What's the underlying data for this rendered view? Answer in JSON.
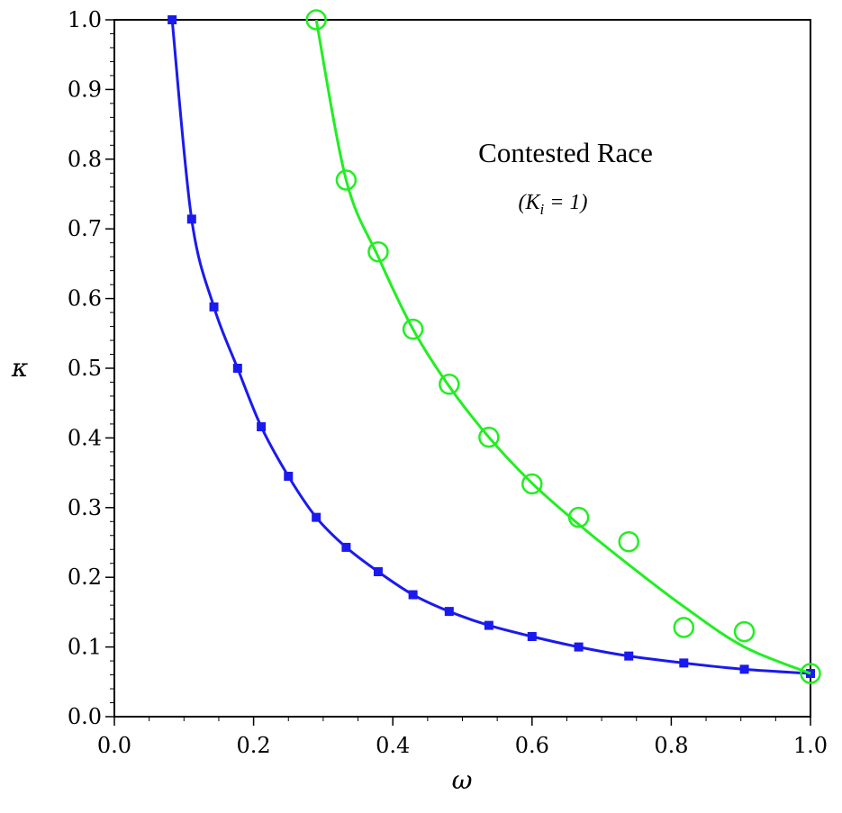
{
  "chart_data": {
    "type": "scatter",
    "xlabel": "ω",
    "ylabel": "κ",
    "xlim": [
      0.0,
      1.0
    ],
    "ylim": [
      0.0,
      1.0
    ],
    "x_ticks": [
      "0.0",
      "0.2",
      "0.4",
      "0.6",
      "0.8",
      "1.0"
    ],
    "y_ticks": [
      "0.0",
      "0.1",
      "0.2",
      "0.3",
      "0.4",
      "0.5",
      "0.6",
      "0.7",
      "0.8",
      "0.9",
      "1.0"
    ],
    "grid": false,
    "annotation": {
      "title": "Contested Race",
      "subtitle": "(K",
      "subscript": "i",
      "subtitle_rest": " = 1)"
    },
    "series": [
      {
        "color": "#1a1aee",
        "marker": "square",
        "x": [
          0.083,
          0.111,
          0.143,
          0.177,
          0.211,
          0.25,
          0.29,
          0.333,
          0.379,
          0.429,
          0.481,
          0.538,
          0.6,
          0.667,
          0.739,
          0.818,
          0.905,
          1.0
        ],
        "y": [
          1.0,
          0.714,
          0.588,
          0.5,
          0.416,
          0.345,
          0.286,
          0.243,
          0.208,
          0.175,
          0.151,
          0.131,
          0.115,
          0.1,
          0.087,
          0.077,
          0.068,
          0.062
        ]
      },
      {
        "color": "#22ee22",
        "marker": "circle",
        "x": [
          0.29,
          0.333,
          0.379,
          0.429,
          0.481,
          0.538,
          0.6,
          0.667,
          0.739,
          0.818,
          0.905,
          1.0
        ],
        "y": [
          1.0,
          0.77,
          0.667,
          0.556,
          0.477,
          0.401,
          0.334,
          0.286,
          0.251,
          0.128,
          0.122,
          0.062
        ],
        "curve_x": [
          0.29,
          0.333,
          0.379,
          0.429,
          0.481,
          0.538,
          0.6,
          0.667,
          0.739,
          0.818,
          0.905,
          1.0
        ],
        "curve_y": [
          1.0,
          0.77,
          0.66,
          0.556,
          0.474,
          0.401,
          0.335,
          0.276,
          0.218,
          0.158,
          0.1,
          0.062
        ]
      }
    ]
  }
}
